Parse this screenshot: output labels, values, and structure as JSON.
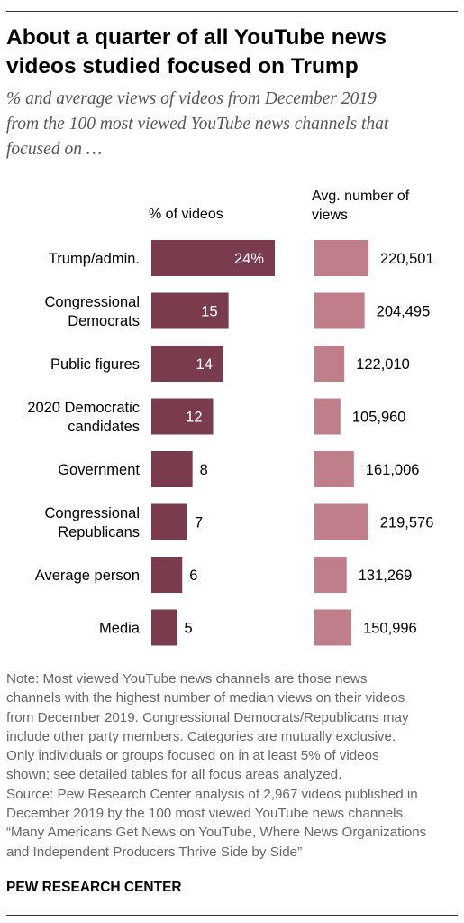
{
  "title_lines": [
    "About a quarter of all YouTube news",
    "videos studied focused on Trump"
  ],
  "subtitle_lines": [
    "% and average views of videos from December 2019",
    "from the 100 most viewed YouTube news channels that",
    "focused on …"
  ],
  "colors": {
    "pct_bar": "#7a3b4c",
    "views_bar": "#c07e8b"
  },
  "chart_data": {
    "type": "bar",
    "categories": [
      [
        "Trump/admin."
      ],
      [
        "Congressional",
        "Democrats"
      ],
      [
        "Public figures"
      ],
      [
        "2020 Democratic",
        "candidates"
      ],
      [
        "Government"
      ],
      [
        "Congressional",
        "Republicans"
      ],
      [
        "Average person"
      ],
      [
        "Media"
      ]
    ],
    "series": [
      {
        "name": "% of videos",
        "header_lines": [
          "% of videos"
        ],
        "values": [
          24,
          15,
          14,
          12,
          8,
          7,
          6,
          5
        ],
        "labels": [
          "24%",
          "15",
          "14",
          "12",
          "8",
          "7",
          "6",
          "5"
        ]
      },
      {
        "name": "Avg. number of views",
        "header_lines": [
          "Avg. number of",
          "views"
        ],
        "values": [
          220501,
          204495,
          122010,
          105960,
          161006,
          219576,
          131269,
          150996
        ],
        "labels": [
          "220,501",
          "204,495",
          "122,010",
          "105,960",
          "161,006",
          "219,576",
          "131,269",
          "150,996"
        ]
      }
    ]
  },
  "note_lines": [
    "Note: Most viewed YouTube news channels are those news",
    "channels with the highest number of median views on their videos",
    "from December 2019. Congressional Democrats/Republicans may",
    "include other party members. Categories are mutually exclusive.",
    "Only individuals or groups focused on in at least 5% of videos",
    "shown; see detailed tables for all focus areas analyzed.",
    "Source: Pew Research Center analysis of 2,967 videos published in",
    "December 2019 by the 100 most viewed YouTube news channels.",
    "“Many Americans Get News on YouTube, Where News Organizations",
    "and Independent Producers Thrive Side by Side”"
  ],
  "footer": "PEW RESEARCH CENTER"
}
